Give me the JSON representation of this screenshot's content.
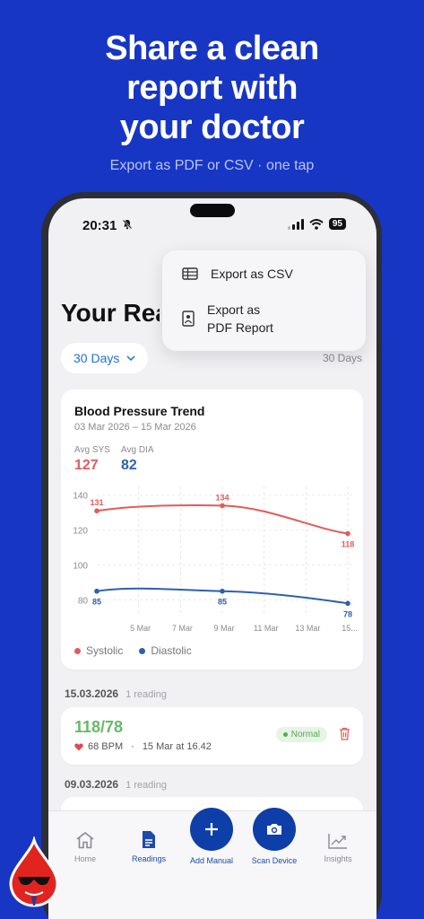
{
  "promo": {
    "title_line1": "Share a clean",
    "title_line2": "report with",
    "title_line3": "your doctor",
    "subtitle": "Export as PDF or CSV · one tap"
  },
  "status_bar": {
    "time": "20:31",
    "battery": "95"
  },
  "page": {
    "title": "Your Readings"
  },
  "filter": {
    "label": "30 Days",
    "range_label": "30 Days"
  },
  "chart_card": {
    "title": "Blood Pressure Trend",
    "dates": "03 Mar 2026 – 15 Mar 2026",
    "avg_sys_label": "Avg SYS",
    "avg_sys_value": "127",
    "avg_dia_label": "Avg DIA",
    "avg_dia_value": "82"
  },
  "chart_data": {
    "type": "line",
    "title": "Blood Pressure Trend",
    "x_ticks": [
      "5 Mar",
      "7 Mar",
      "9 Mar",
      "11 Mar",
      "13 Mar",
      "15..."
    ],
    "y_ticks": [
      140,
      120,
      100,
      80
    ],
    "ylim": [
      72,
      145
    ],
    "grid": true,
    "legend_placement": "bottom-left",
    "series": [
      {
        "name": "Systolic",
        "color": "#e45a5a",
        "points": [
          {
            "x": "3 Mar",
            "y": 131
          },
          {
            "x": "9 Mar",
            "y": 134
          },
          {
            "x": "15 Mar",
            "y": 118
          }
        ]
      },
      {
        "name": "Diastolic",
        "color": "#2f5fb0",
        "points": [
          {
            "x": "3 Mar",
            "y": 85
          },
          {
            "x": "9 Mar",
            "y": 85
          },
          {
            "x": "15 Mar",
            "y": 78
          }
        ]
      }
    ]
  },
  "groups": [
    {
      "date": "15.03.2026",
      "count": "1 reading"
    },
    {
      "date": "09.03.2026",
      "count": "1 reading"
    }
  ],
  "reading": {
    "value": "118/78",
    "bpm": "68 BPM",
    "separator": "·",
    "time": "15 Mar at 16.42",
    "status": "Normal"
  },
  "tabs": {
    "home": "Home",
    "readings": "Readings",
    "add_manual": "Add Manual",
    "scan_device": "Scan Device",
    "insights": "Insights"
  },
  "menu": {
    "csv": "Export as CSV",
    "pdf_line1": "Export as",
    "pdf_line2": "PDF Report"
  },
  "colors": {
    "accent": "#1736c4",
    "systolic": "#e45a5a",
    "diastolic": "#2f5fb0",
    "normal": "#67b967"
  }
}
